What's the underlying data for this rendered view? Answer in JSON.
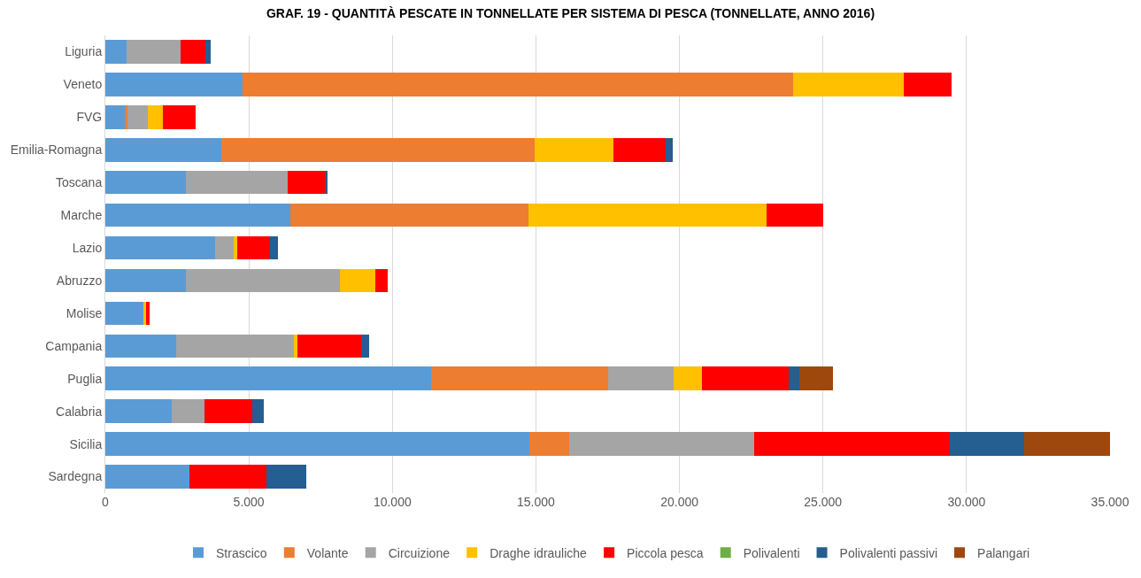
{
  "chart_data": {
    "type": "bar",
    "orientation": "horizontal",
    "stacked": true,
    "title": "GRAF. 19 - QUANTITÀ PESCATE IN TONNELLATE PER SISTEMA DI PESCA (TONNELLATE, ANNO 2016)",
    "categories": [
      "Liguria",
      "Veneto",
      "FVG",
      "Emilia-Romagna",
      "Toscana",
      "Marche",
      "Lazio",
      "Abruzzo",
      "Molise",
      "Campania",
      "Puglia",
      "Calabria",
      "Sicilia",
      "Sardegna"
    ],
    "series": [
      {
        "name": "Strascico",
        "color": "#5b9bd5",
        "values": [
          730,
          4770,
          700,
          4050,
          2810,
          6450,
          3830,
          2810,
          1330,
          2470,
          11350,
          2310,
          14760,
          2940
        ]
      },
      {
        "name": "Volante",
        "color": "#ed7d31",
        "values": [
          null,
          19190,
          60,
          10900,
          null,
          8280,
          null,
          null,
          null,
          null,
          6170,
          null,
          1400,
          null
        ]
      },
      {
        "name": "Circuizione",
        "color": "#a5a5a5",
        "values": [
          1890,
          null,
          730,
          null,
          3540,
          null,
          630,
          5350,
          null,
          4110,
          2270,
          1140,
          6450,
          null
        ]
      },
      {
        "name": "Draghe idrauliche",
        "color": "#ffc000",
        "values": [
          null,
          3860,
          500,
          2750,
          null,
          8290,
          120,
          1260,
          90,
          120,
          980,
          null,
          null,
          null
        ]
      },
      {
        "name": "Piccola pesca",
        "color": "#ff0000",
        "values": [
          860,
          1650,
          1170,
          1810,
          1300,
          1990,
          1170,
          410,
          130,
          2220,
          3040,
          1670,
          6820,
          2660
        ]
      },
      {
        "name": "Polivalenti",
        "color": "#70ad47",
        "values": [
          null,
          null,
          null,
          null,
          null,
          null,
          null,
          null,
          null,
          null,
          null,
          null,
          null,
          null
        ]
      },
      {
        "name": "Polivalenti passivi",
        "color": "#255e91",
        "values": [
          190,
          null,
          null,
          250,
          100,
          null,
          260,
          null,
          null,
          280,
          380,
          410,
          2570,
          1390
        ]
      },
      {
        "name": "Palangari",
        "color": "#9e480e",
        "values": [
          null,
          null,
          null,
          null,
          null,
          null,
          null,
          null,
          null,
          null,
          1170,
          null,
          3000,
          null
        ]
      }
    ],
    "xlim": [
      0,
      35000
    ],
    "xticks": [
      0,
      {
        "value": 5000,
        "label": "5.000"
      },
      {
        "value": 10000,
        "label": "10.000"
      },
      {
        "value": 15000,
        "label": "15.000"
      },
      {
        "value": 20000,
        "label": "20.000"
      },
      {
        "value": 25000,
        "label": "25.000"
      },
      {
        "value": 30000,
        "label": "30.000"
      },
      {
        "value": 35000,
        "label": "35.000"
      }
    ],
    "grid": "x",
    "legend": "bottom"
  }
}
